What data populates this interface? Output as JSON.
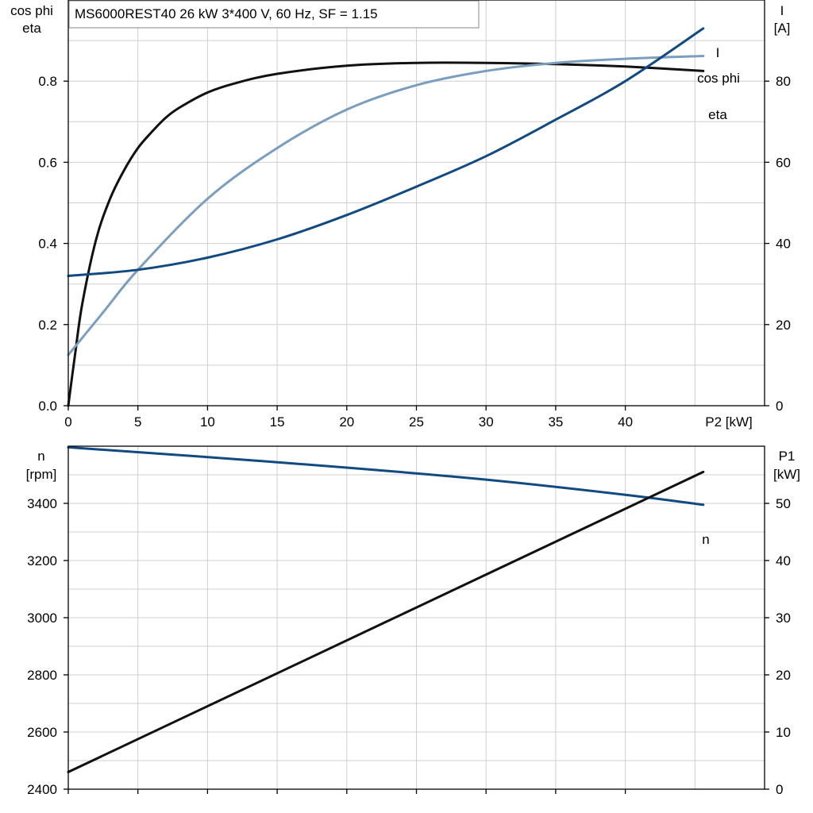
{
  "title": "MS6000REST40   26 kW   3*400 V, 60 Hz, SF = 1.15",
  "colors": {
    "eta": "#111111",
    "cos_phi": "#7b9ebf",
    "current": "#114a80",
    "speed": "#114a80",
    "p1": "#111111"
  },
  "chart_data": [
    {
      "type": "line",
      "x_label": "P2 [kW]",
      "x_range": [
        0,
        50
      ],
      "x_ticks": [
        0,
        5,
        10,
        15,
        20,
        25,
        30,
        35,
        40
      ],
      "left_axis": {
        "label_line1": "cos phi",
        "label_line2": "eta",
        "range": [
          0,
          1.0
        ],
        "ticks": [
          0.0,
          0.2,
          0.4,
          0.6,
          0.8
        ]
      },
      "right_axis": {
        "label_line1": "I",
        "label_line2": "[A]",
        "range": [
          0,
          100
        ],
        "ticks": [
          0,
          20,
          40,
          60,
          80
        ]
      },
      "series": [
        {
          "name": "eta",
          "axis": "left",
          "color_key": "eta",
          "x": [
            0,
            0.5,
            1,
            2,
            3,
            4,
            5,
            6,
            7,
            8,
            10,
            12,
            15,
            20,
            25,
            30,
            35,
            40,
            45.6
          ],
          "y": [
            0.0,
            0.13,
            0.25,
            0.41,
            0.51,
            0.58,
            0.635,
            0.675,
            0.71,
            0.735,
            0.772,
            0.795,
            0.818,
            0.838,
            0.845,
            0.845,
            0.842,
            0.836,
            0.825
          ]
        },
        {
          "name": "cos phi",
          "axis": "left",
          "color_key": "cos_phi",
          "x": [
            0,
            2.5,
            5,
            10,
            15,
            20,
            25,
            30,
            35,
            40,
            45.6
          ],
          "y": [
            0.125,
            0.23,
            0.335,
            0.51,
            0.635,
            0.73,
            0.79,
            0.825,
            0.845,
            0.855,
            0.862
          ]
        },
        {
          "name": "I",
          "axis": "right",
          "color_key": "current",
          "x": [
            0,
            5,
            10,
            15,
            20,
            25,
            30,
            35,
            40,
            45.6
          ],
          "y": [
            32,
            33.5,
            36.5,
            41,
            47,
            54,
            61.5,
            70.5,
            80,
            93
          ]
        }
      ]
    },
    {
      "type": "line",
      "x_range": [
        0,
        50
      ],
      "x_ticks": [
        0,
        5,
        10,
        15,
        20,
        25,
        30,
        35,
        40
      ],
      "left_axis": {
        "label_line1": "n",
        "label_line2": "[rpm]",
        "range": [
          2400,
          3600
        ],
        "ticks": [
          2400,
          2600,
          2800,
          3000,
          3200,
          3400
        ]
      },
      "right_axis": {
        "label_line1": "P1",
        "label_line2": "[kW]",
        "range": [
          0,
          60
        ],
        "ticks": [
          0,
          10,
          20,
          30,
          40,
          50
        ]
      },
      "series": [
        {
          "name": "n",
          "axis": "left",
          "color_key": "speed",
          "x": [
            0,
            10,
            20,
            30,
            40,
            45.6
          ],
          "y": [
            3596,
            3562,
            3525,
            3483,
            3430,
            3395
          ]
        },
        {
          "name": "",
          "axis": "right",
          "color_key": "p1",
          "x": [
            0,
            45.6
          ],
          "y": [
            3,
            55.5
          ]
        }
      ]
    }
  ]
}
